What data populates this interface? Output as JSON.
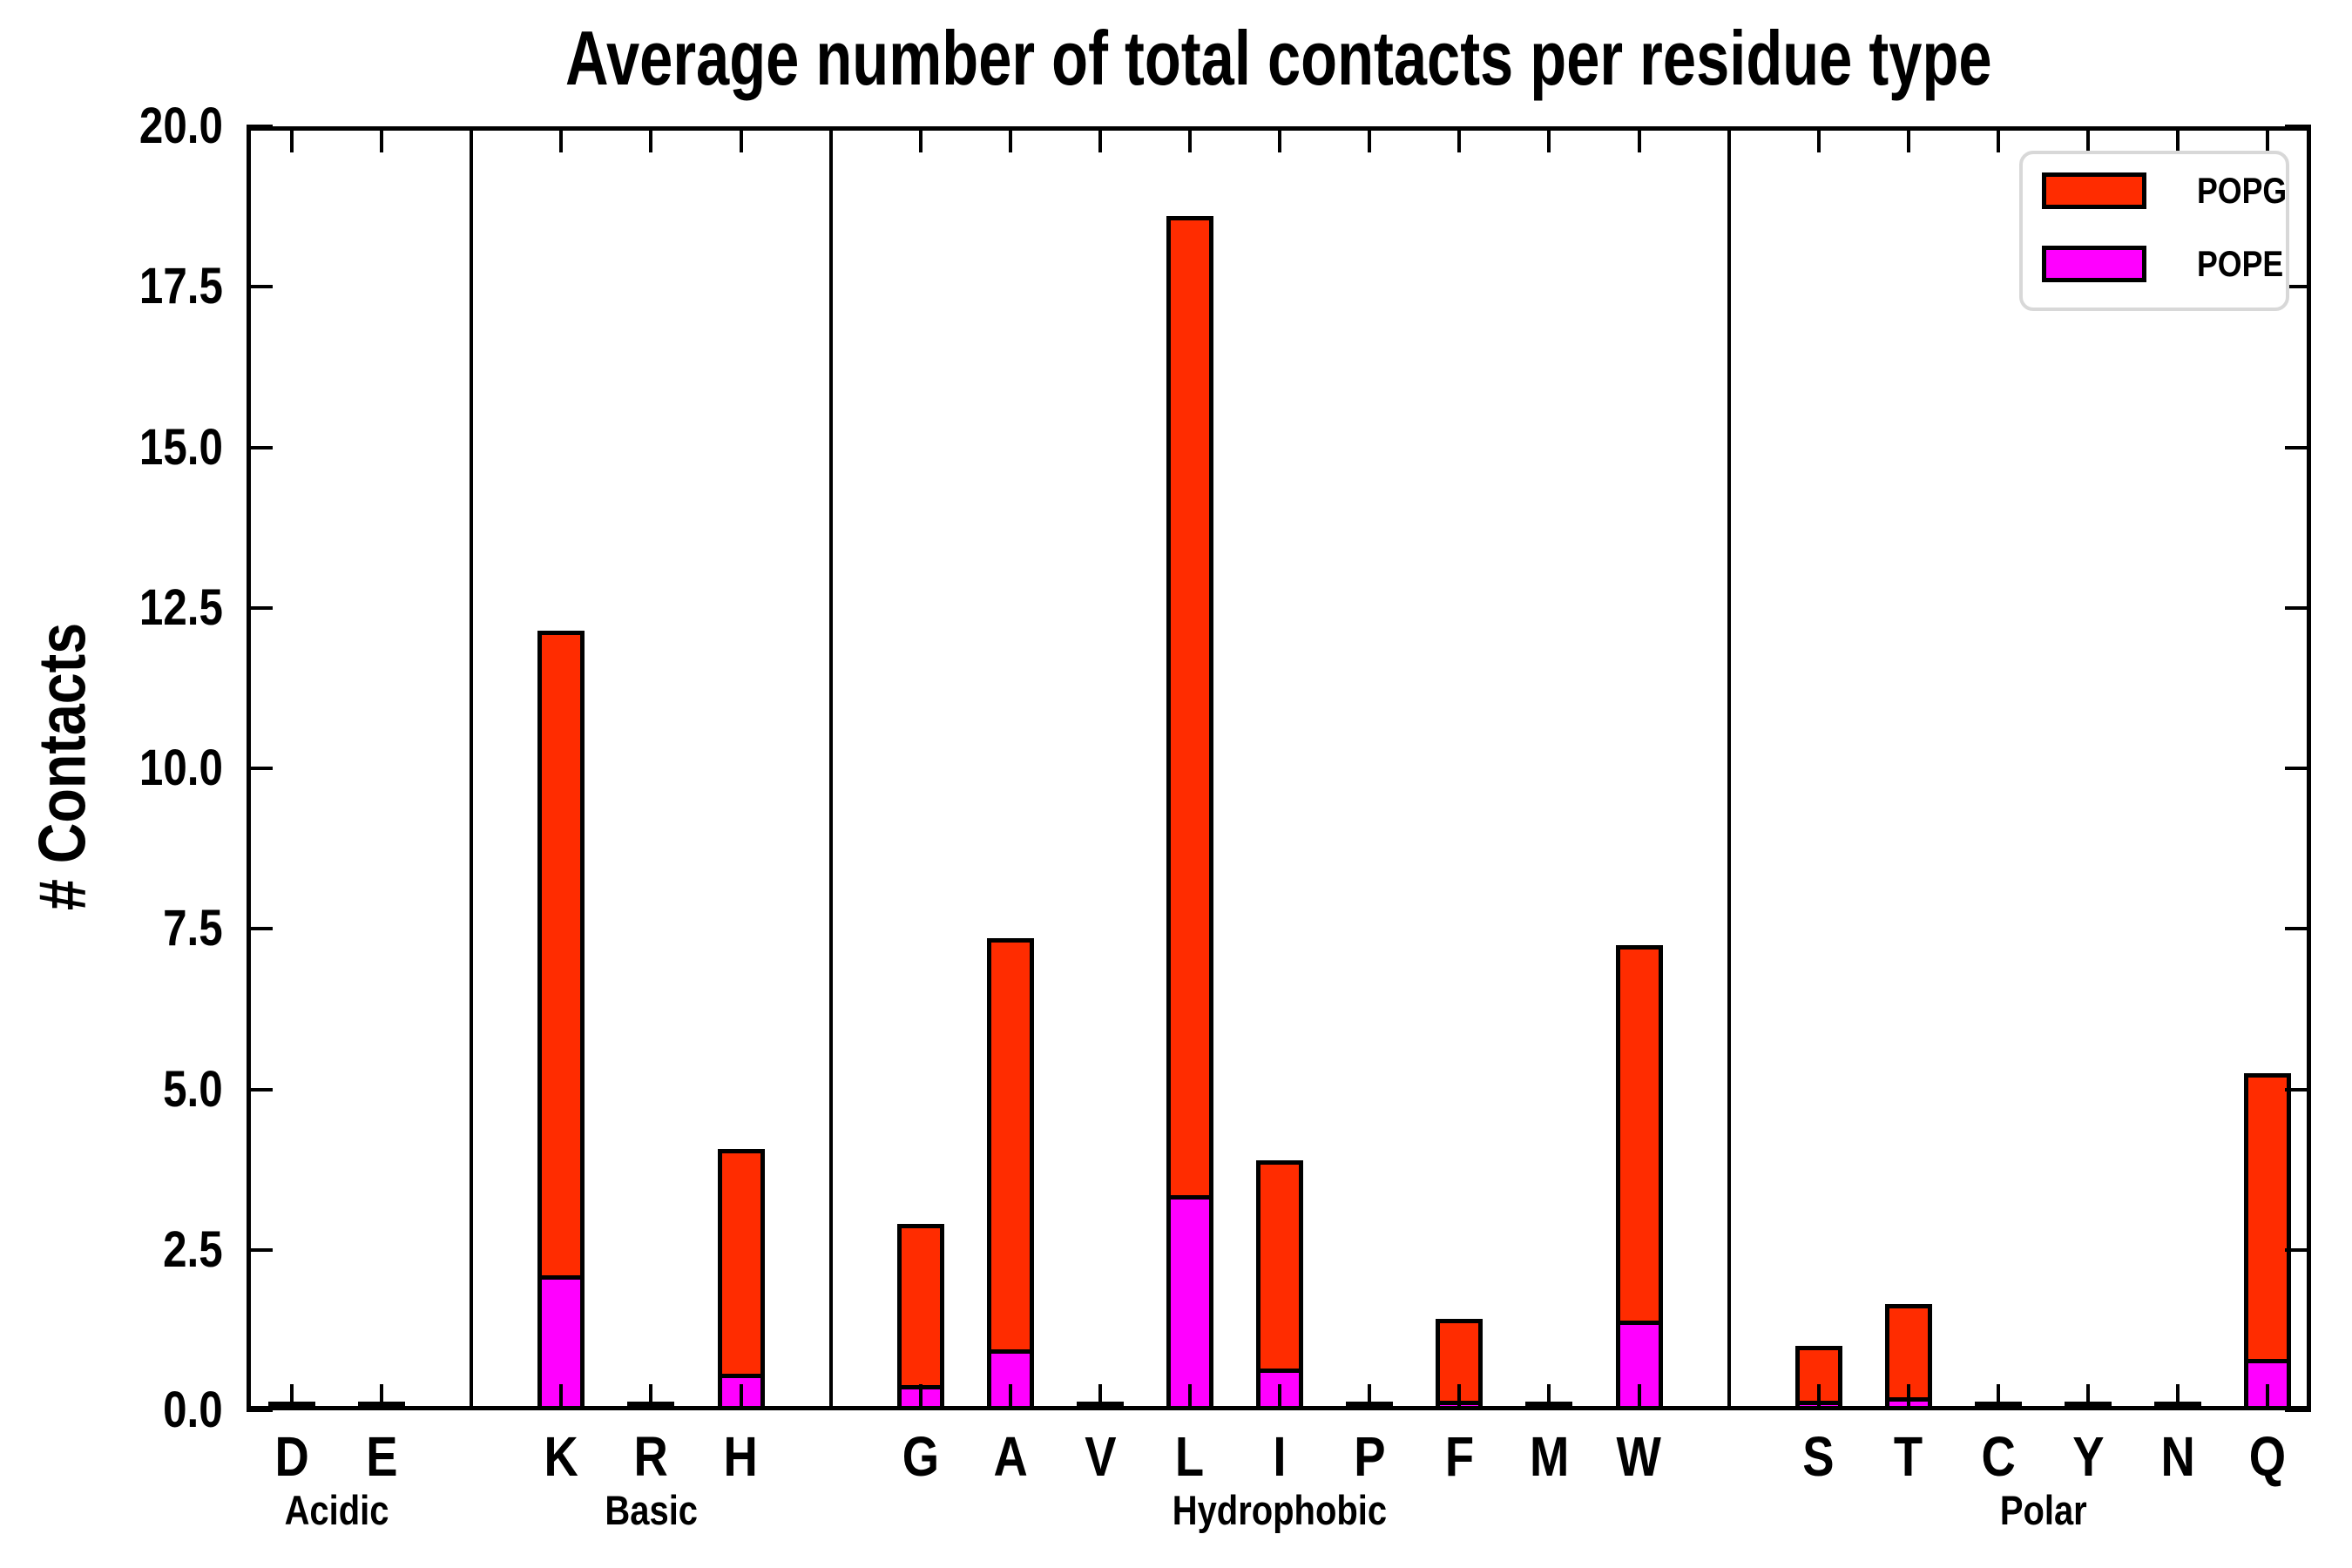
{
  "chart_data": {
    "type": "bar",
    "stacked": true,
    "title": "Average number of total contacts per residue type",
    "ylabel": "# Contacts",
    "xlabel": "",
    "ylim": [
      0,
      20
    ],
    "yticks": [
      "0.0",
      "2.5",
      "5.0",
      "7.5",
      "10.0",
      "12.5",
      "15.0",
      "17.5",
      "20.0"
    ],
    "grid": false,
    "legend_position": "upper right",
    "categories": [
      "D",
      "E",
      "K",
      "R",
      "H",
      "G",
      "A",
      "V",
      "L",
      "I",
      "P",
      "F",
      "M",
      "W",
      "S",
      "T",
      "C",
      "Y",
      "N",
      "Q"
    ],
    "groups": [
      {
        "label": "Acidic",
        "residues": [
          "D",
          "E"
        ]
      },
      {
        "label": "Basic",
        "residues": [
          "K",
          "R",
          "H"
        ]
      },
      {
        "label": "Hydrophobic",
        "residues": [
          "G",
          "A",
          "V",
          "L",
          "I",
          "P",
          "F",
          "M",
          "W"
        ]
      },
      {
        "label": "Polar",
        "residues": [
          "S",
          "T",
          "C",
          "Y",
          "N",
          "Q"
        ]
      }
    ],
    "series": [
      {
        "name": "POPG",
        "color": "#ff2c00",
        "values": [
          0.02,
          0.02,
          10.05,
          0.03,
          3.5,
          2.5,
          6.4,
          0.04,
          15.25,
          3.25,
          0.03,
          1.27,
          0.02,
          5.85,
          0.85,
          1.45,
          0.02,
          0.02,
          0.02,
          4.45
        ]
      },
      {
        "name": "POPE",
        "color": "#ff00ff",
        "values": [
          0.02,
          0.02,
          2.1,
          0.02,
          0.57,
          0.4,
          0.95,
          0.03,
          3.35,
          0.65,
          0.02,
          0.15,
          0.02,
          1.4,
          0.15,
          0.2,
          0.01,
          0.01,
          0.02,
          0.8
        ]
      }
    ],
    "totals": [
      0.04,
      0.04,
      12.15,
      0.05,
      4.07,
      2.9,
      7.35,
      0.07,
      18.6,
      3.9,
      0.05,
      1.42,
      0.04,
      7.25,
      1.0,
      1.65,
      0.03,
      0.03,
      0.04,
      5.25
    ]
  }
}
